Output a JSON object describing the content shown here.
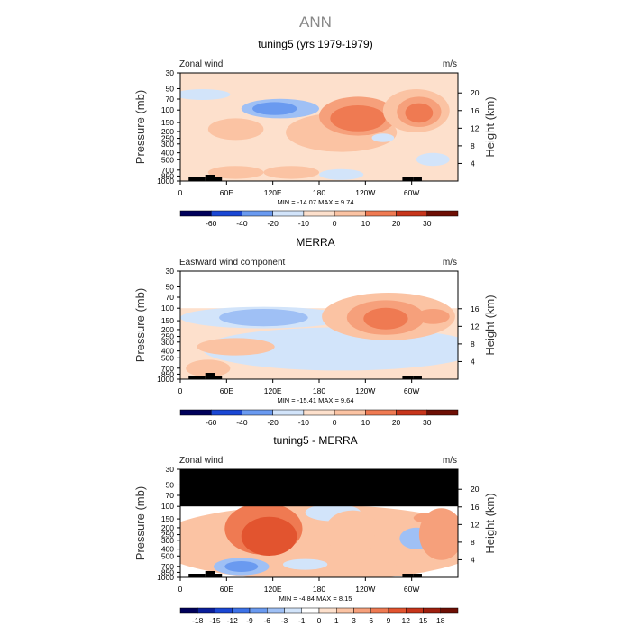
{
  "figure": {
    "title": "ANN"
  },
  "colors": {
    "diverging": [
      "#00005a",
      "#0a1e9a",
      "#1a47d4",
      "#3d72e8",
      "#6a9af0",
      "#9fc0f5",
      "#d2e4fa",
      "#ffffff",
      "#fde0cc",
      "#fbc3a3",
      "#f6a07b",
      "#ef7a52",
      "#e2542f",
      "#c7351b",
      "#9e1f0e",
      "#6e0f04"
    ]
  },
  "chart_data": [
    {
      "type": "heatmap",
      "title": "tuning5 (yrs 1979-1979)",
      "variable_label": "Zonal wind",
      "units_label": "m/s",
      "ylabel": "Pressure (mb)",
      "ylabel_right": "Height (km)",
      "x_ticks": [
        "0",
        "60E",
        "120E",
        "180",
        "120W",
        "60W"
      ],
      "x_range": [
        0,
        360
      ],
      "y_ticks": [
        "30",
        "50",
        "70",
        "100",
        "150",
        "200",
        "250",
        "300",
        "400",
        "500",
        "700",
        "850",
        "1000"
      ],
      "y_range": [
        30,
        1000
      ],
      "y_scale": "log",
      "height_ticks": [
        "20",
        "16",
        "12",
        "8",
        "4"
      ],
      "min_max_text": "MIN = -14.07   MAX =   9.74",
      "min": -14.07,
      "max": 9.74,
      "colorbar_levels": [
        "-60",
        "-40",
        "-20",
        "-10",
        "0",
        "10",
        "20",
        "30"
      ]
    },
    {
      "type": "heatmap",
      "title": "MERRA",
      "variable_label": "Eastward wind component",
      "units_label": "m/s",
      "ylabel": "Pressure (mb)",
      "ylabel_right": "Height (km)",
      "x_ticks": [
        "0",
        "60E",
        "120E",
        "180",
        "120W",
        "60W"
      ],
      "x_range": [
        0,
        360
      ],
      "y_ticks": [
        "30",
        "50",
        "70",
        "100",
        "150",
        "200",
        "250",
        "300",
        "400",
        "500",
        "700",
        "850",
        "1000"
      ],
      "y_range": [
        30,
        1000
      ],
      "y_scale": "log",
      "height_ticks": [
        "16",
        "12",
        "8",
        "4"
      ],
      "min_max_text": "MIN = -15.41   MAX =   9.64",
      "min": -15.41,
      "max": 9.64,
      "colorbar_levels": [
        "-60",
        "-40",
        "-20",
        "-10",
        "0",
        "10",
        "20",
        "30"
      ]
    },
    {
      "type": "heatmap",
      "title": "tuning5 - MERRA",
      "variable_label": "Zonal wind",
      "units_label": "m/s",
      "ylabel": "Pressure (mb)",
      "ylabel_right": "Height (km)",
      "x_ticks": [
        "0",
        "60E",
        "120E",
        "180",
        "120W",
        "60W"
      ],
      "x_range": [
        0,
        360
      ],
      "y_ticks": [
        "30",
        "50",
        "70",
        "100",
        "150",
        "200",
        "250",
        "300",
        "400",
        "500",
        "700",
        "850",
        "1000"
      ],
      "y_range": [
        30,
        1000
      ],
      "y_scale": "log",
      "height_ticks": [
        "20",
        "16",
        "12",
        "8",
        "4"
      ],
      "min_max_text": "MIN = -4.84   MAX =   8.15",
      "min": -4.84,
      "max": 8.15,
      "colorbar_levels": [
        "-18",
        "-15",
        "-12",
        "-9",
        "-6",
        "-3",
        "-1",
        "0",
        "1",
        "3",
        "6",
        "9",
        "12",
        "15",
        "18"
      ]
    }
  ]
}
